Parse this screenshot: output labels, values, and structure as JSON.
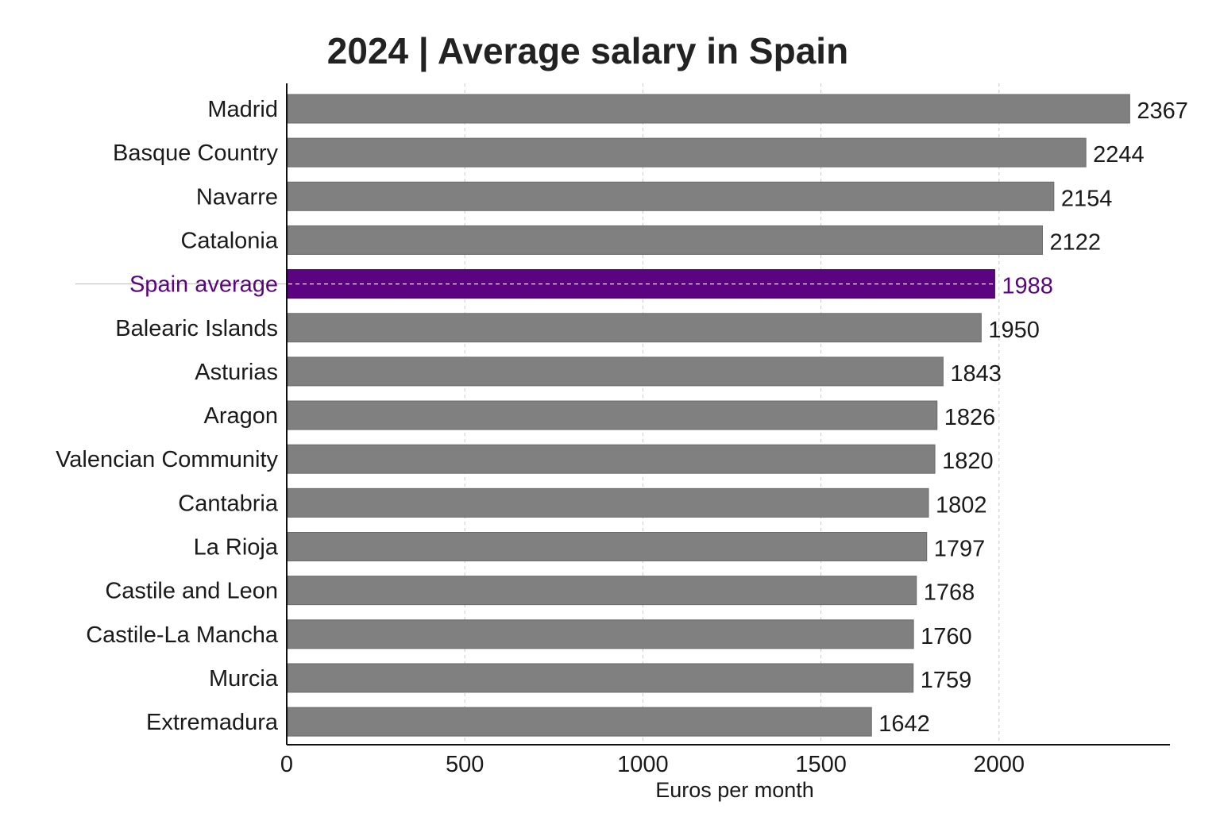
{
  "chart_data": {
    "type": "bar",
    "orientation": "horizontal",
    "title": "2024 | Average salary in Spain",
    "xlabel": "Euros per month",
    "ylabel": "",
    "xlim": [
      0,
      2480
    ],
    "xticks": [
      0,
      500,
      1000,
      1500,
      2000
    ],
    "grid": "vertical dashed",
    "categories": [
      "Madrid",
      "Basque Country",
      "Navarre",
      "Catalonia",
      "Spain average",
      "Balearic Islands",
      "Asturias",
      "Aragon",
      "Valencian Community",
      "Cantabria",
      "La Rioja",
      "Castile and Leon",
      "Castile-La Mancha",
      "Murcia",
      "Extremadura"
    ],
    "values": [
      2367,
      2244,
      2154,
      2122,
      1988,
      1950,
      1843,
      1826,
      1820,
      1802,
      1797,
      1768,
      1760,
      1759,
      1642
    ],
    "highlight": "Spain average",
    "colors": {
      "bar": "#808080",
      "highlight": "#5c0381",
      "grid": "#c8c8c8"
    }
  }
}
